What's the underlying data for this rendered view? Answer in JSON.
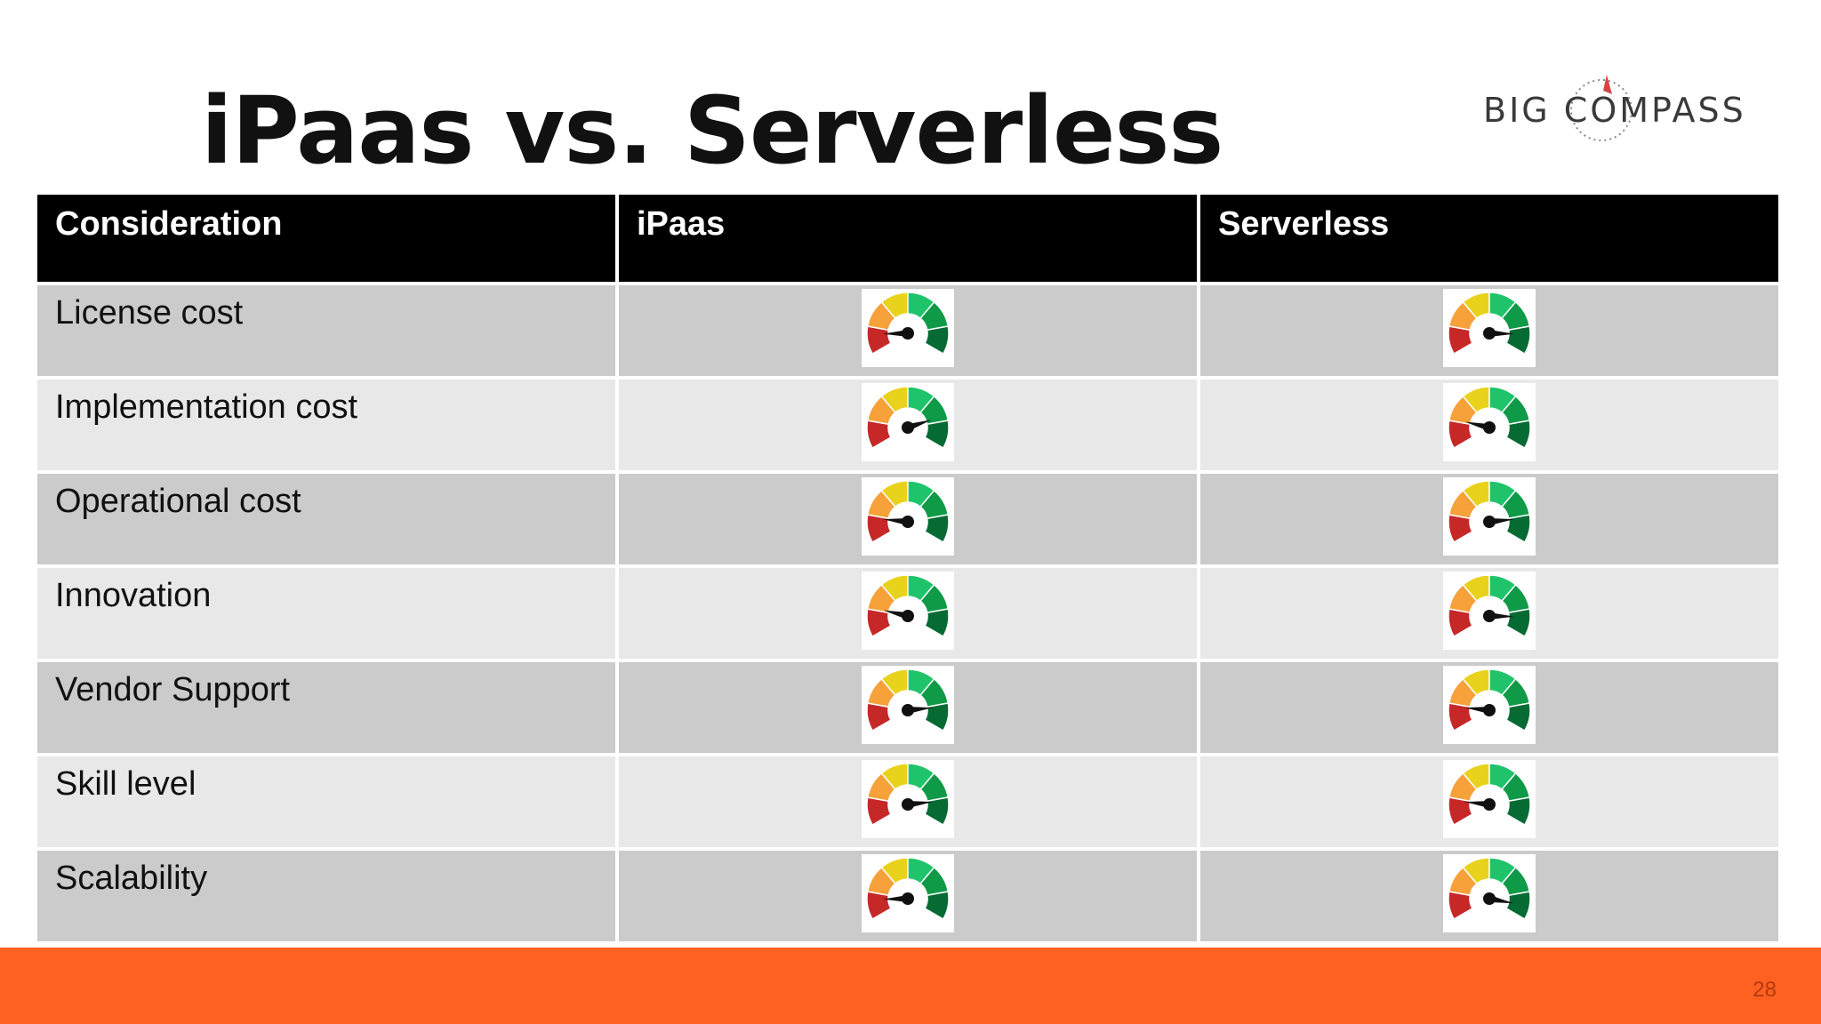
{
  "slide": {
    "title": "iPaas vs. Serverless",
    "page_number": "28"
  },
  "logo": {
    "text": "BIG COMPASS"
  },
  "table": {
    "headers": [
      "Consideration",
      "iPaas",
      "Serverless"
    ],
    "rows": [
      {
        "label": "License cost"
      },
      {
        "label": "Implementation cost"
      },
      {
        "label": "Operational cost"
      },
      {
        "label": "Innovation"
      },
      {
        "label": "Vendor Support"
      },
      {
        "label": "Skill level"
      },
      {
        "label": "Scalability"
      }
    ]
  },
  "gauges": {
    "icon": "speedometer-gauge-icon",
    "segment_colors": [
      "#c62828",
      "#f6a13a",
      "#e9d21c",
      "#1fc46a",
      "#0f9a47",
      "#056b33"
    ],
    "needle_color": "#111111",
    "levels_0_to_1": {
      "ipaas": [
        0.12,
        0.8,
        0.15,
        0.18,
        0.85,
        0.85,
        0.12
      ],
      "serverless": [
        0.88,
        0.18,
        0.85,
        0.88,
        0.15,
        0.15,
        0.92
      ]
    }
  },
  "colors": {
    "header_bg": "#000000",
    "row_odd": "#cbcbcb",
    "row_even": "#e8e8e8",
    "footer": "#ff6120"
  }
}
